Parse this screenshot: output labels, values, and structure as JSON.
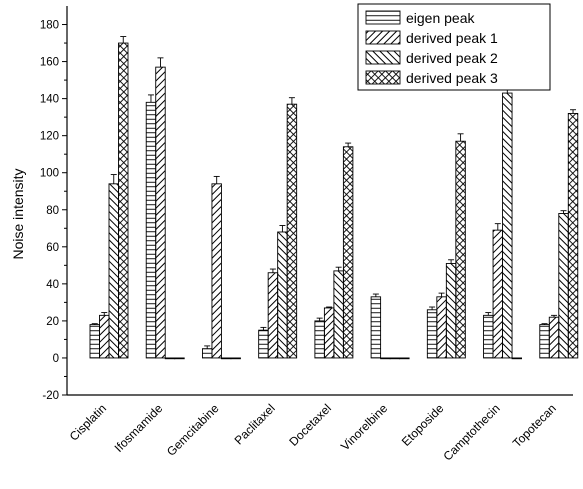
{
  "chart_data": {
    "type": "bar",
    "title": "",
    "xlabel": "",
    "ylabel": "Noise intensity",
    "ylim": [
      -20,
      190
    ],
    "yticks": [
      -20,
      0,
      20,
      40,
      60,
      80,
      100,
      120,
      140,
      160,
      180
    ],
    "grid": false,
    "legend_position": "top-right",
    "categories": [
      "Cisplatin",
      "Ifosmamide",
      "Gemcitabine",
      "Paclitaxel",
      "Docetaxel",
      "Vinorelbine",
      "Etoposide",
      "Camptothecin",
      "Topotecan"
    ],
    "series": [
      {
        "name": "eigen peak",
        "pattern": "horizontal-lines",
        "values": [
          18,
          138,
          5,
          15,
          20,
          33,
          26,
          23,
          18
        ],
        "errors": [
          0.5,
          4,
          1.5,
          1.5,
          1.5,
          1.5,
          1.5,
          1.5,
          0.5
        ]
      },
      {
        "name": "derived peak 1",
        "pattern": "back-diagonal-lines",
        "values": [
          23,
          157,
          94,
          46,
          27,
          0,
          33,
          69,
          22
        ],
        "errors": [
          1.5,
          5,
          4,
          2,
          0.5,
          0,
          2,
          3.5,
          1
        ]
      },
      {
        "name": "derived peak 2",
        "pattern": "forward-diagonal-lines",
        "values": [
          94,
          0,
          0,
          68,
          47,
          0,
          51,
          143,
          78
        ],
        "errors": [
          5,
          0,
          0,
          3.5,
          2,
          0,
          2,
          3.5,
          1.5
        ]
      },
      {
        "name": "derived peak 3",
        "pattern": "crosshatch",
        "values": [
          170,
          0,
          0,
          137,
          114,
          0,
          117,
          0,
          132
        ],
        "errors": [
          3.5,
          0,
          0,
          3.5,
          2,
          0,
          4,
          0,
          2
        ]
      }
    ]
  }
}
